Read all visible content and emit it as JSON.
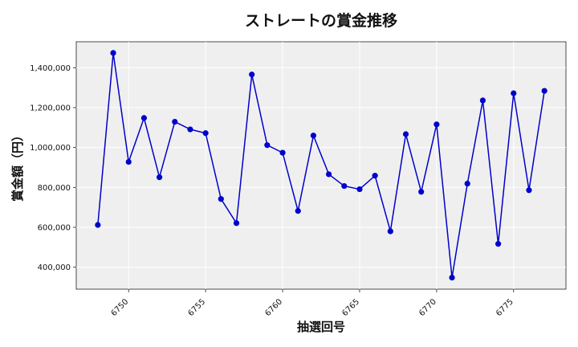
{
  "chart_data": {
    "type": "line",
    "title": "ストレートの賞金推移",
    "xlabel": "抽選回号",
    "ylabel": "賞金額（円）",
    "xlim": [
      6746.6,
      6778.4
    ],
    "ylim": [
      290000,
      1530000
    ],
    "x_ticks": [
      6750,
      6755,
      6760,
      6765,
      6770,
      6775
    ],
    "y_ticks": [
      400000,
      600000,
      800000,
      1000000,
      1200000,
      1400000
    ],
    "y_tick_labels": [
      "400,000",
      "600,000",
      "800,000",
      "1,000,000",
      "1,200,000",
      "1,400,000"
    ],
    "grid": true,
    "series": [
      {
        "color": "#0000cc",
        "x": [
          6748,
          6749,
          6750,
          6751,
          6752,
          6753,
          6754,
          6755,
          6756,
          6757,
          6758,
          6759,
          6760,
          6761,
          6762,
          6763,
          6764,
          6765,
          6766,
          6767,
          6768,
          6769,
          6770,
          6771,
          6772,
          6773,
          6774,
          6775,
          6776,
          6777
        ],
        "y": [
          612000,
          1474000,
          928000,
          1148000,
          851000,
          1129000,
          1091000,
          1072000,
          742000,
          621000,
          1366000,
          1012000,
          974000,
          682000,
          1060000,
          866000,
          807000,
          791000,
          859000,
          580000,
          1067000,
          778000,
          1116000,
          348000,
          819000,
          1236000,
          517000,
          1272000,
          786000,
          1284000
        ]
      }
    ]
  }
}
